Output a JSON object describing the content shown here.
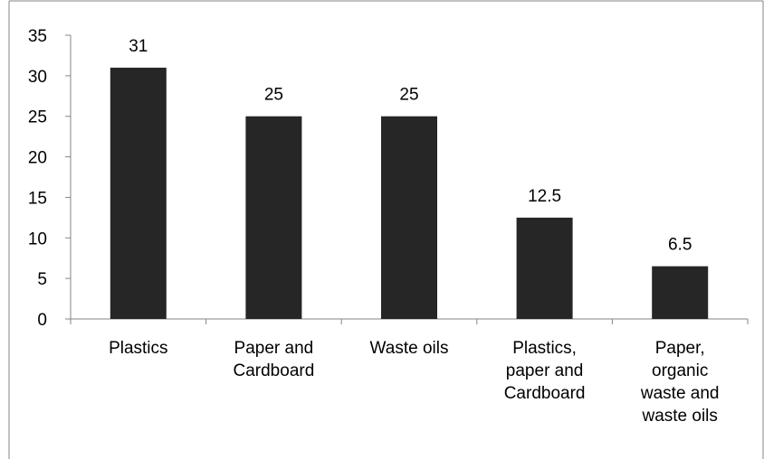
{
  "chart_data": {
    "type": "bar",
    "categories": [
      "Plastics",
      "Paper and Cardboard",
      "Waste oils",
      "Plastics, paper and Cardboard",
      "Paper, organic waste and waste oils"
    ],
    "category_lines": [
      [
        "Plastics"
      ],
      [
        "Paper and",
        "Cardboard"
      ],
      [
        "Waste oils"
      ],
      [
        "Plastics,",
        "paper and",
        "Cardboard"
      ],
      [
        "Paper,",
        "organic",
        "waste and",
        "waste oils"
      ]
    ],
    "values": [
      31,
      25,
      25,
      12.5,
      6.5
    ],
    "data_labels": [
      "31",
      "25",
      "25",
      "12.5",
      "6.5"
    ],
    "title": "",
    "xlabel": "",
    "ylabel": "",
    "ylim": [
      0,
      35
    ],
    "yticks": [
      0,
      5,
      10,
      15,
      20,
      25,
      30,
      35
    ],
    "grid": false,
    "legend": "none",
    "colors": {
      "bar": "#262626",
      "axis": "#868686",
      "frame": "#868686",
      "text": "#000000"
    }
  }
}
